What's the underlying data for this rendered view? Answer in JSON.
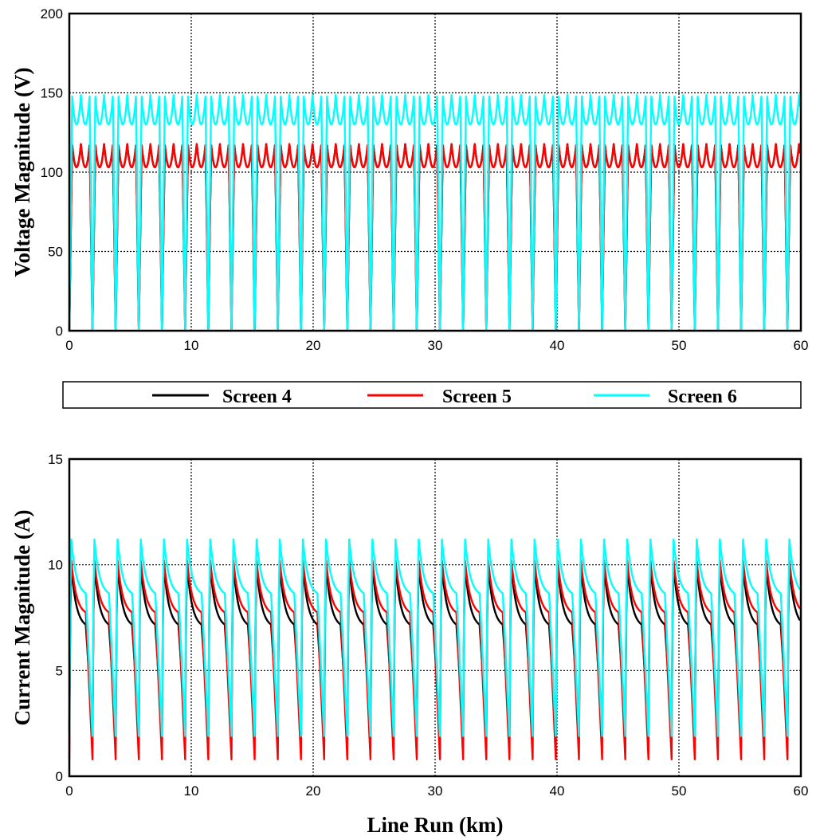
{
  "chart_data": [
    {
      "type": "line",
      "title": "",
      "xlabel": "",
      "ylabel": "Voltage Magnitude (V)",
      "xlim": [
        0,
        60
      ],
      "ylim": [
        0,
        200
      ],
      "xticks": [
        "0",
        "10",
        "20",
        "30",
        "40",
        "50",
        "60"
      ],
      "yticks": [
        "0",
        "50",
        "100",
        "150",
        "200"
      ],
      "grid": true,
      "segment_length_km": 1.9,
      "series": [
        {
          "name": "Screen 4",
          "color": "#000000",
          "peak": 118,
          "mid_dip": 103,
          "min": 0
        },
        {
          "name": "Screen 5",
          "color": "#ff0000",
          "peak": 118,
          "mid_dip": 103,
          "min": 0
        },
        {
          "name": "Screen 6",
          "color": "#00ffff",
          "peak": 149,
          "mid_dip": 130,
          "min": 0
        }
      ]
    },
    {
      "type": "line",
      "title": "",
      "xlabel": "Line Run (km)",
      "ylabel": "Current Magnitude (A)",
      "xlim": [
        0,
        60
      ],
      "ylim": [
        0,
        15
      ],
      "xticks": [
        "0",
        "10",
        "20",
        "30",
        "40",
        "50",
        "60"
      ],
      "yticks": [
        "0",
        "5",
        "10",
        "15"
      ],
      "grid": true,
      "segment_length_km": 1.9,
      "series": [
        {
          "name": "Screen 4",
          "color": "#000000",
          "peak": 10.3,
          "end_value": 7.0,
          "min": 2.2
        },
        {
          "name": "Screen 5",
          "color": "#ff0000",
          "peak": 10.5,
          "end_value": 7.6,
          "min": 0.8
        },
        {
          "name": "Screen 6",
          "color": "#00ffff",
          "peak": 11.5,
          "end_value": 8.5,
          "min": 1.9
        }
      ]
    }
  ],
  "legend": {
    "items": [
      {
        "label": "Screen 4",
        "color": "#000000"
      },
      {
        "label": "Screen 5",
        "color": "#ff0000"
      },
      {
        "label": "Screen 6",
        "color": "#00ffff"
      }
    ]
  }
}
